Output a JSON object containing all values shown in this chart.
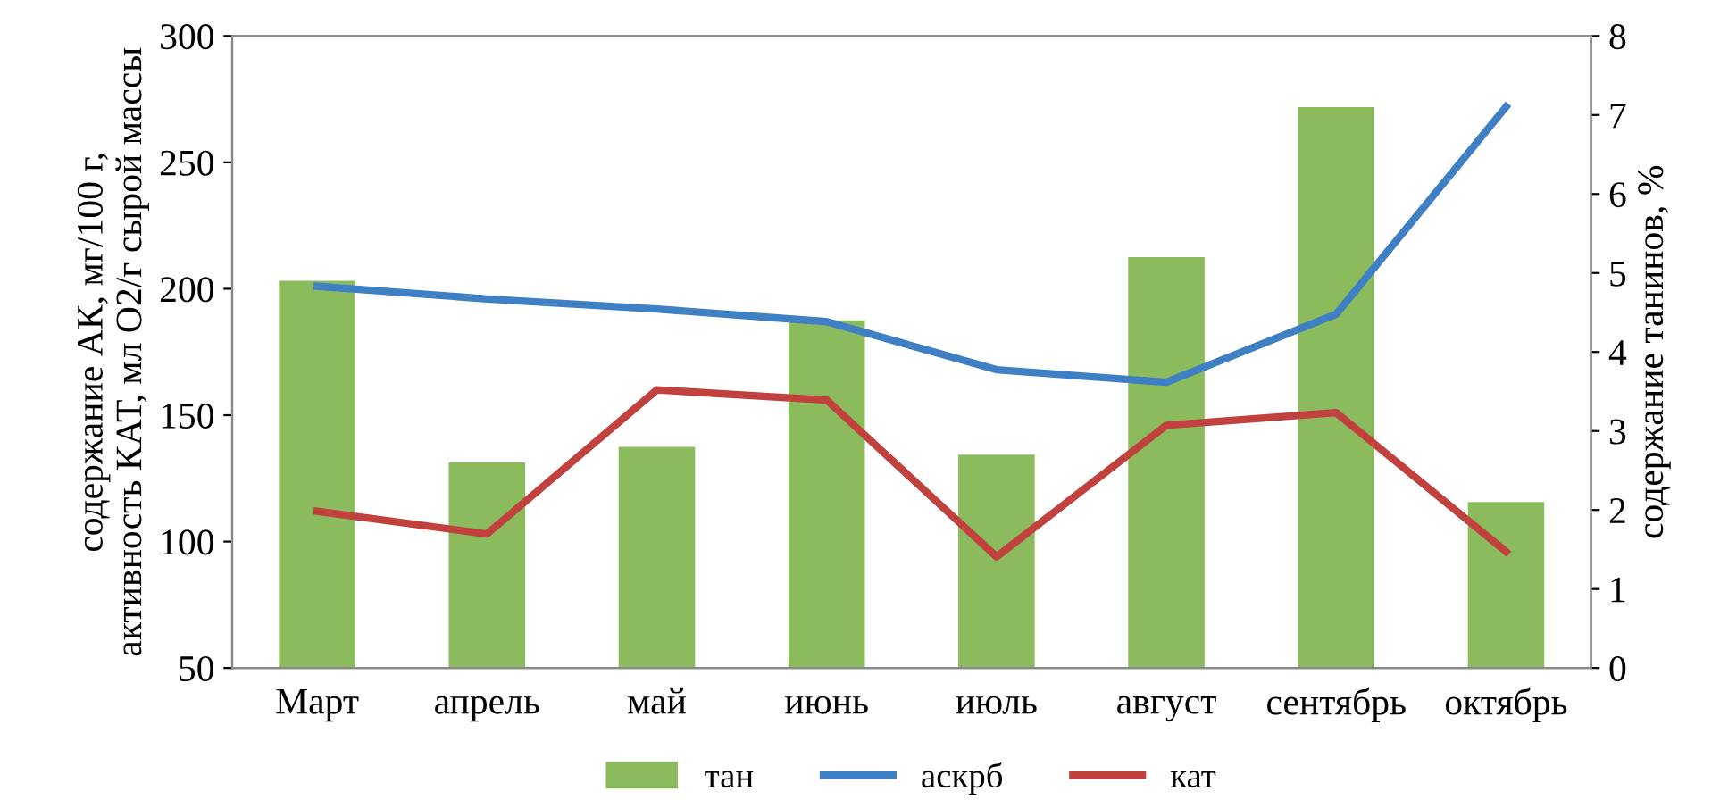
{
  "chart_data": {
    "type": "bar",
    "categories": [
      "Март",
      "апрель",
      "май",
      "июнь",
      "июль",
      "август",
      "сентябрь",
      "октябрь"
    ],
    "ylabel": "содержание АК, мг/100 г,\nактивность КАТ, мл О2/г сырой массы",
    "y2label": "содержание танинов, %",
    "ylim": [
      50,
      300
    ],
    "yticks": [
      50,
      100,
      150,
      200,
      250,
      300
    ],
    "y2lim": [
      0,
      8
    ],
    "y2ticks": [
      0,
      1,
      2,
      3,
      4,
      5,
      6,
      7,
      8
    ],
    "series": [
      {
        "name": "тан",
        "axis": "y2",
        "color": "#8cbb5e",
        "values": [
          4.9,
          2.6,
          2.8,
          4.4,
          2.7,
          5.2,
          7.1,
          2.1
        ]
      },
      {
        "name": "аскрб",
        "type": "line",
        "axis": "y",
        "color": "#3f7fc4",
        "values": [
          201,
          196,
          192,
          187,
          168,
          163,
          190,
          272
        ]
      },
      {
        "name": "кат",
        "type": "line",
        "axis": "y",
        "color": "#c0413d",
        "values": [
          112,
          103,
          160,
          156,
          94,
          146,
          151,
          96
        ]
      }
    ],
    "grid": false,
    "legend": "bottom",
    "marker": "none"
  }
}
